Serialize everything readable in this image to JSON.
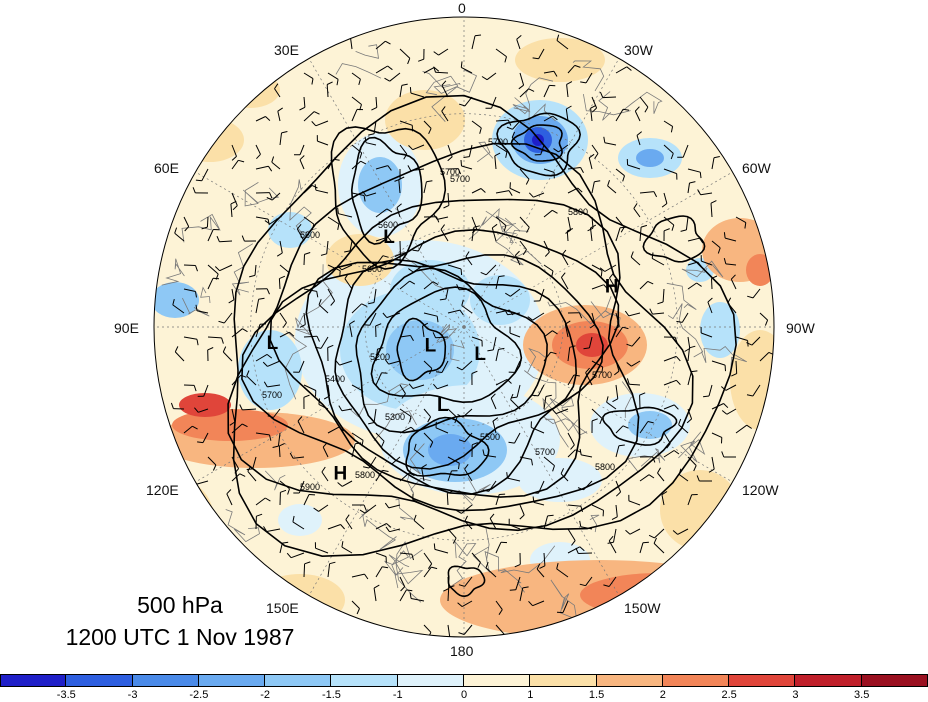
{
  "title": {
    "level": "500 hPa",
    "time": "1200 UTC 1 Nov 1987"
  },
  "longitude_labels": [
    "0",
    "30W",
    "60W",
    "90W",
    "120W",
    "150W",
    "180",
    "150E",
    "120E",
    "90E",
    "60E",
    "30E"
  ],
  "pressure_systems": [
    {
      "type": "L",
      "lat": 55,
      "lon": 40
    },
    {
      "type": "H",
      "lat": 45,
      "lon": -75
    },
    {
      "type": "L",
      "lat": 35,
      "lon": 95
    },
    {
      "type": "L",
      "lat": 80,
      "lon": -150
    },
    {
      "type": "L",
      "lat": 78,
      "lon": 120
    },
    {
      "type": "L",
      "lat": 65,
      "lon": 165
    },
    {
      "type": "H",
      "lat": 35,
      "lon": 140
    }
  ],
  "contour_labels": [
    "5700",
    "5700",
    "5600",
    "5600",
    "5800",
    "5700",
    "5900",
    "5800",
    "5700",
    "5800",
    "5700",
    "5400",
    "5200",
    "5300",
    "5500",
    "5600",
    "5700"
  ],
  "colorbar": {
    "ticks": [
      "-3.5",
      "-3",
      "-2.5",
      "-2",
      "-1.5",
      "-1",
      "0",
      "1",
      "1.5",
      "2",
      "2.5",
      "3",
      "3.5"
    ],
    "colors": [
      "#1f1fc8",
      "#2e5fe0",
      "#4a8ae8",
      "#6aaaf0",
      "#8ec8f5",
      "#b6e2fa",
      "#dff2fb",
      "#fdf3d6",
      "#fbe0a8",
      "#f8b680",
      "#f28558",
      "#e0453a",
      "#c01f2a",
      "#9a1020"
    ]
  },
  "colors": {
    "coast": "#7a7a7a",
    "contour": "#000000",
    "grid": "#777777"
  }
}
